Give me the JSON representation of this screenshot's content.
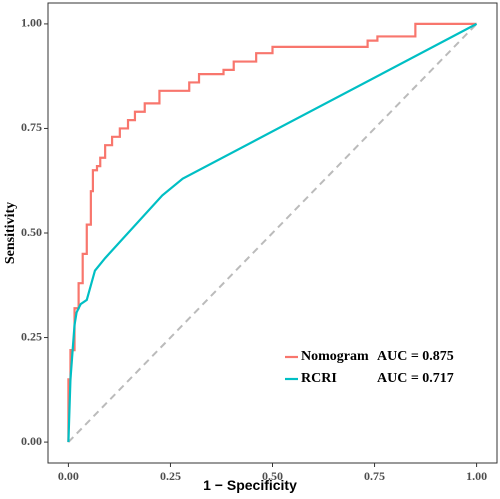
{
  "chart_data": {
    "type": "line",
    "xlabel": "1 − Specificity",
    "ylabel": "Sensitivity",
    "xlim": [
      -0.05,
      1.05
    ],
    "ylim": [
      -0.05,
      1.05
    ],
    "xticks": [
      {
        "value": 0,
        "label": "0.00"
      },
      {
        "value": 0.25,
        "label": "0.25"
      },
      {
        "value": 0.5,
        "label": "0.50"
      },
      {
        "value": 0.75,
        "label": "0.75"
      },
      {
        "value": 1,
        "label": "1.00"
      }
    ],
    "yticks": [
      {
        "value": 0,
        "label": "0.00"
      },
      {
        "value": 0.25,
        "label": "0.25"
      },
      {
        "value": 0.5,
        "label": "0.50"
      },
      {
        "value": 0.75,
        "label": "0.75"
      },
      {
        "value": 1,
        "label": "1.00"
      }
    ],
    "grid": false,
    "legend": "bottom-right",
    "series": [
      {
        "name": "Nomogram",
        "auc_label": "AUC = 0.875",
        "color": "#F8766D",
        "x": [
          0,
          0,
          0.005,
          0.005,
          0.015,
          0.015,
          0.025,
          0.025,
          0.035,
          0.035,
          0.045,
          0.045,
          0.055,
          0.055,
          0.06,
          0.06,
          0.07,
          0.07,
          0.078,
          0.078,
          0.09,
          0.09,
          0.107,
          0.107,
          0.126,
          0.126,
          0.146,
          0.146,
          0.163,
          0.163,
          0.187,
          0.187,
          0.223,
          0.223,
          0.296,
          0.296,
          0.32,
          0.32,
          0.38,
          0.38,
          0.405,
          0.405,
          0.46,
          0.46,
          0.5,
          0.5,
          0.733,
          0.733,
          0.757,
          0.757,
          0.85,
          0.85,
          1
        ],
        "values": [
          0,
          0.15,
          0.15,
          0.22,
          0.22,
          0.32,
          0.32,
          0.38,
          0.38,
          0.45,
          0.45,
          0.52,
          0.52,
          0.6,
          0.6,
          0.65,
          0.65,
          0.66,
          0.66,
          0.68,
          0.68,
          0.71,
          0.71,
          0.73,
          0.73,
          0.75,
          0.75,
          0.77,
          0.77,
          0.79,
          0.79,
          0.81,
          0.81,
          0.84,
          0.84,
          0.86,
          0.86,
          0.88,
          0.88,
          0.89,
          0.89,
          0.91,
          0.91,
          0.93,
          0.93,
          0.945,
          0.945,
          0.96,
          0.96,
          0.97,
          0.97,
          1,
          1
        ]
      },
      {
        "name": "RCRI",
        "auc_label": "AUC = 0.717",
        "color": "#00BFC4",
        "x": [
          0,
          0.005,
          0.015,
          0.02,
          0.03,
          0.045,
          0.065,
          0.09,
          0.23,
          0.28,
          1
        ],
        "values": [
          0,
          0.15,
          0.28,
          0.31,
          0.33,
          0.34,
          0.41,
          0.44,
          0.59,
          0.63,
          1
        ]
      }
    ]
  }
}
